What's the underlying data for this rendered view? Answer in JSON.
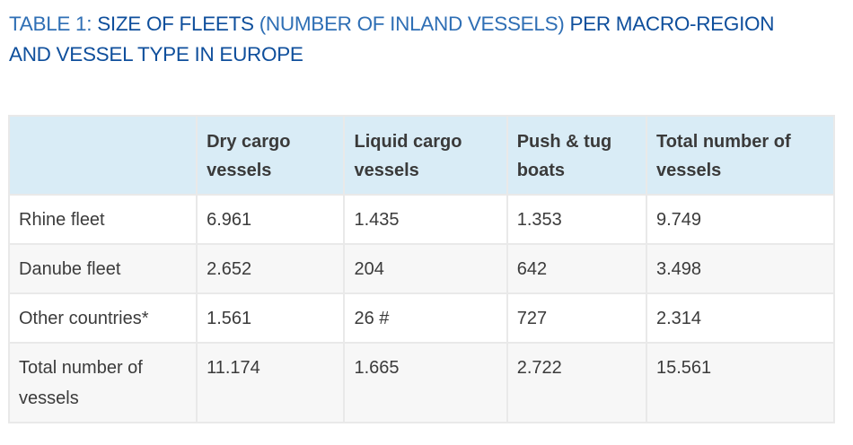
{
  "title": {
    "prefix": "TABLE 1: ",
    "part1_bold": "SIZE OF FLEETS",
    "part2_light": " (NUMBER OF INLAND VESSELS) ",
    "part3_bold": "PER MACRO-REGION AND VESSEL TYPE IN EUROPE"
  },
  "table": {
    "headers": [
      "",
      "Dry cargo vessels",
      "Liquid cargo vessels",
      "Push & tug boats",
      "Total number of vessels"
    ],
    "rows": [
      [
        "Rhine fleet",
        "6.961",
        "1.435",
        "1.353",
        "9.749"
      ],
      [
        "Danube fleet",
        "2.652",
        "204",
        "642",
        "3.498"
      ],
      [
        "Other countries*",
        "1.561",
        "26 #",
        "727",
        "2.314"
      ],
      [
        "Total number of vessels",
        "11.174",
        "1.665",
        "2.722",
        "15.561"
      ]
    ]
  },
  "colors": {
    "title_blue": "#1a5fa8",
    "header_bg": "#d9ecf6",
    "row_alt_bg": "#f7f7f7",
    "border": "#e9e9e9"
  }
}
